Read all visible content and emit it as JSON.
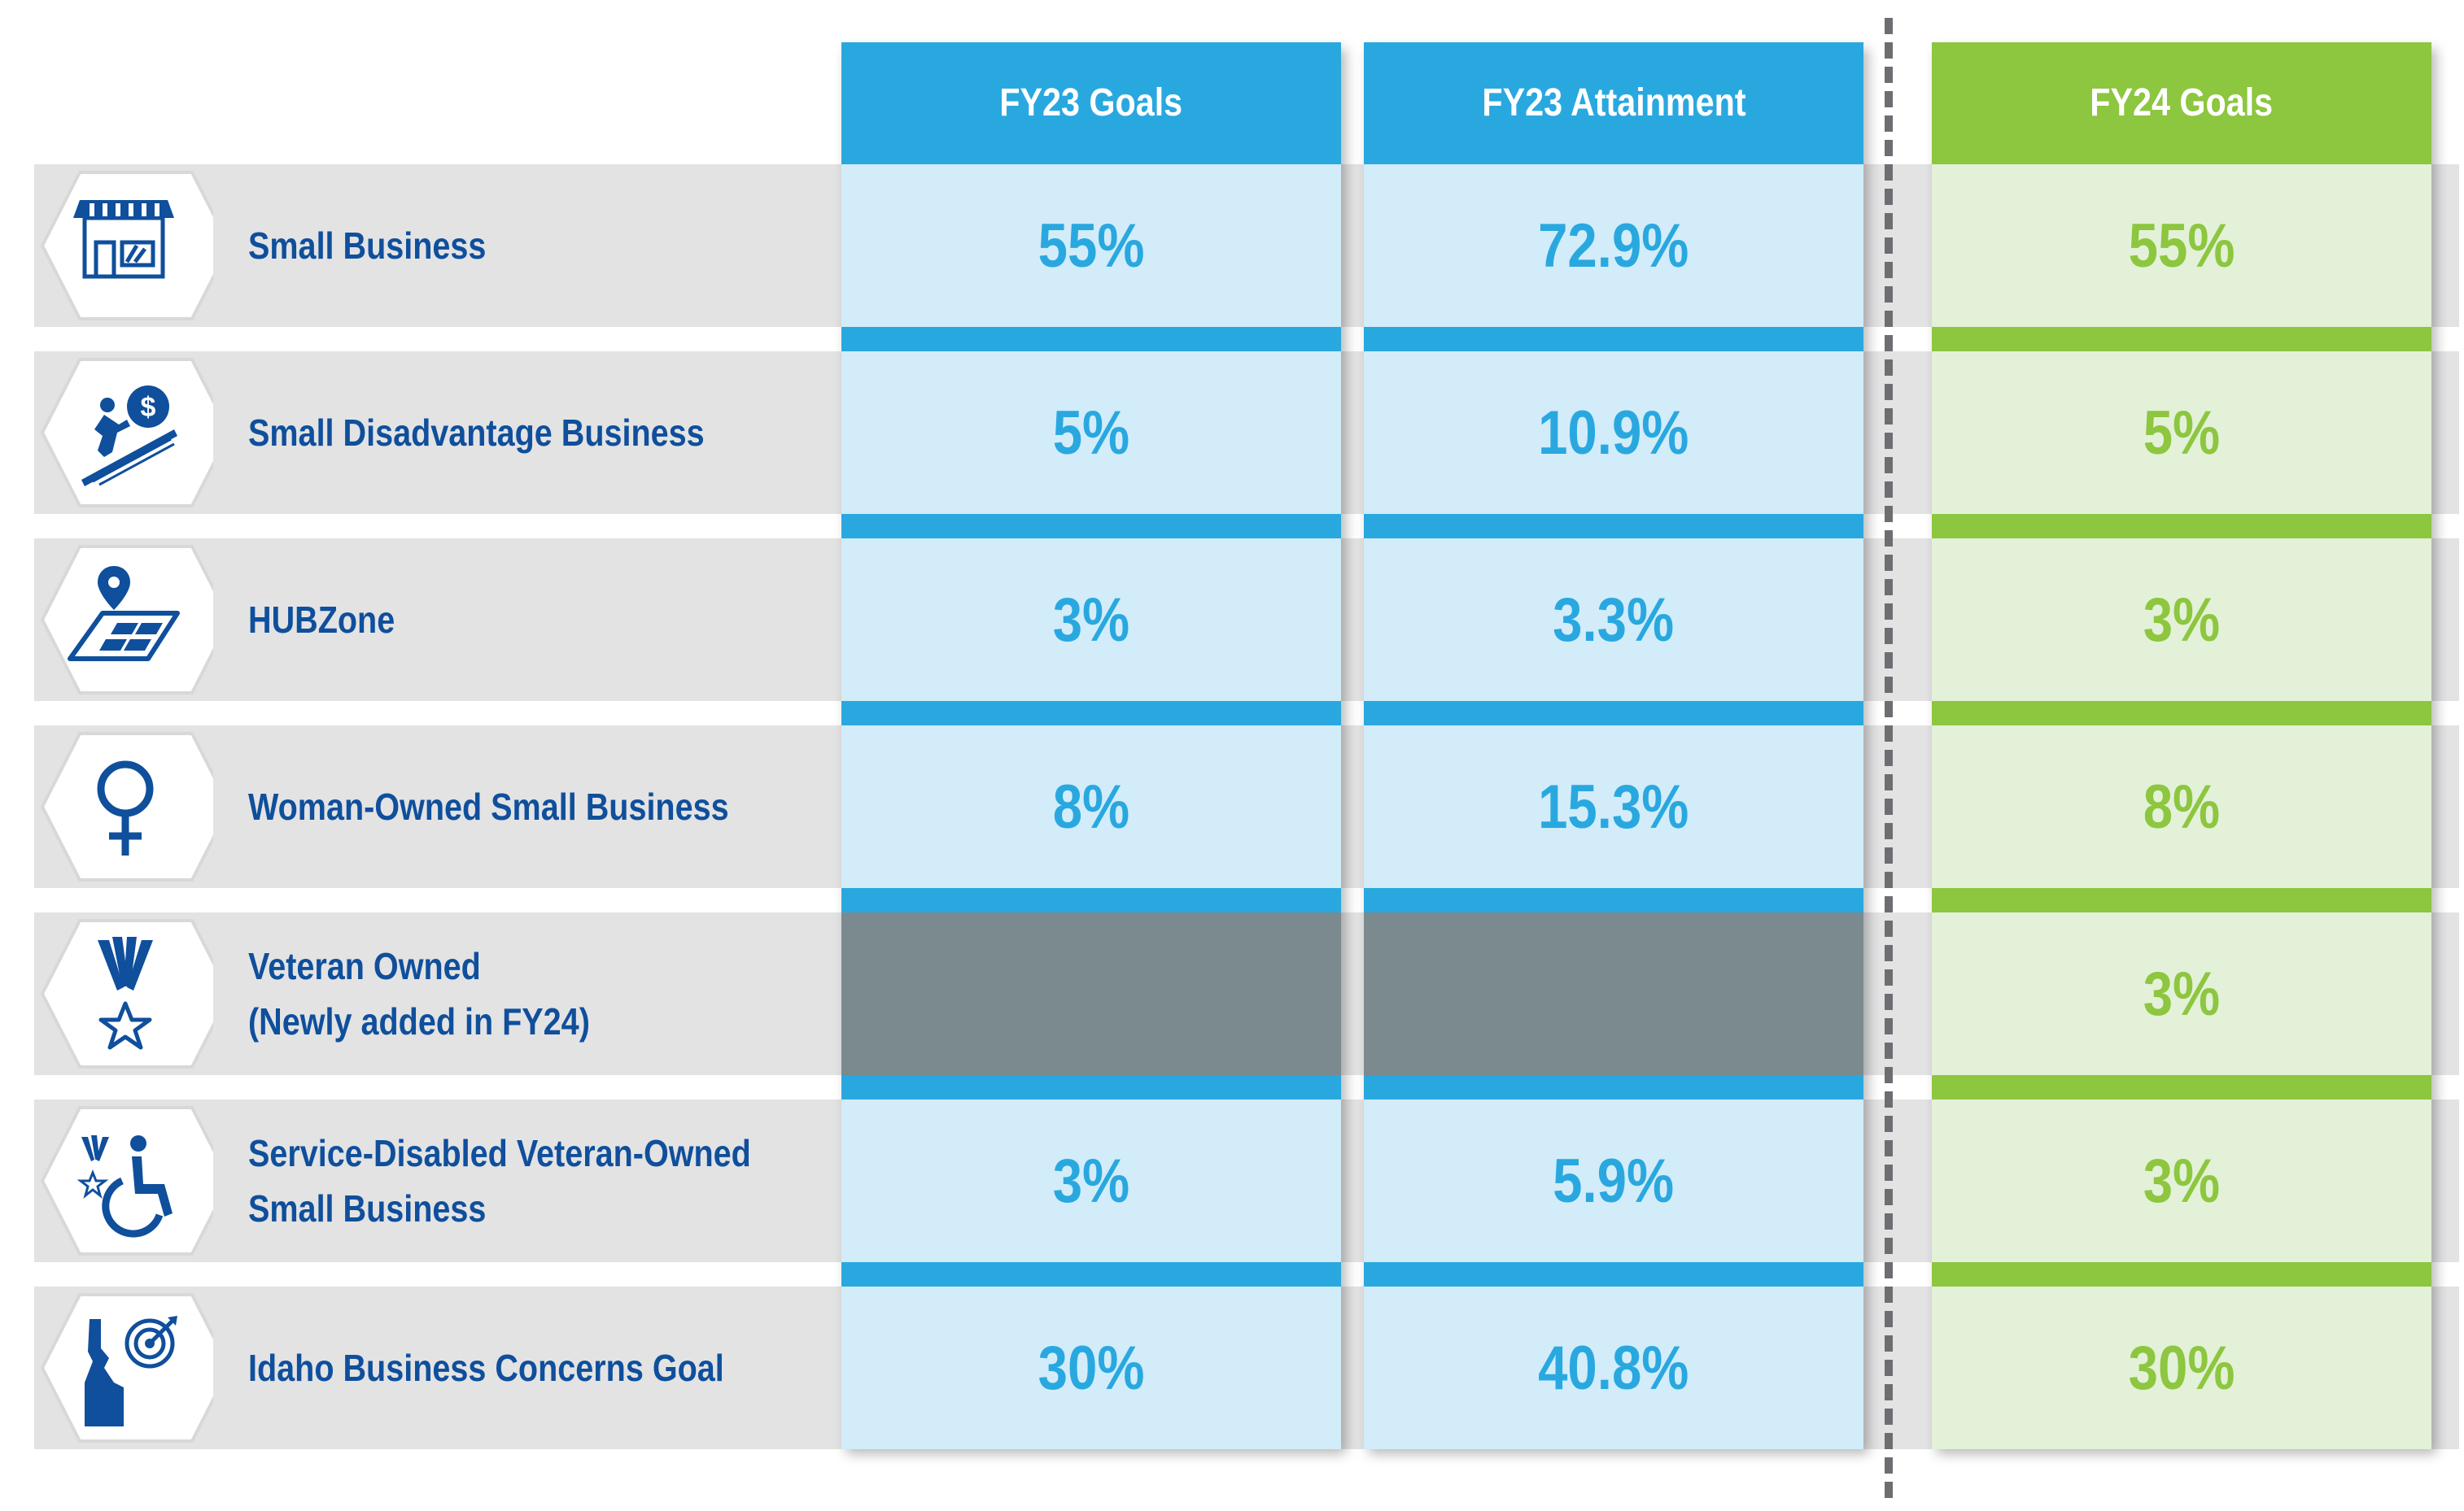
{
  "colors": {
    "fy23_header": "#29a8e0",
    "fy23_cell": "#d2ecf9",
    "fy23_text": "#29a8e0",
    "fy24_header": "#8dc63f",
    "fy24_cell": "#e3f1d8",
    "fy24_text": "#8dc63f",
    "label_text": "#0f4f9c",
    "row_band": "#e3e3e4",
    "blank_cell": "#7b8a8f",
    "icon_blue": "#0f4f9c"
  },
  "columns": [
    {
      "key": "fy23_goals",
      "label": "FY23 Goals"
    },
    {
      "key": "fy23_attainment",
      "label": "FY23 Attainment"
    },
    {
      "key": "fy24_goals",
      "label": "FY24 Goals"
    }
  ],
  "rows": [
    {
      "icon": "storefront-icon",
      "label_lines": [
        "Small Business"
      ],
      "fy23_goals": "55%",
      "fy23_attainment": "72.9%",
      "fy24_goals": "55%"
    },
    {
      "icon": "person-pushing-coin-uphill-icon",
      "label_lines": [
        "Small Disadvantage Business"
      ],
      "fy23_goals": "5%",
      "fy23_attainment": "10.9%",
      "fy24_goals": "5%"
    },
    {
      "icon": "map-pin-icon",
      "label_lines": [
        "HUBZone"
      ],
      "fy23_goals": "3%",
      "fy23_attainment": "3.3%",
      "fy24_goals": "3%"
    },
    {
      "icon": "female-symbol-icon",
      "label_lines": [
        "Woman-Owned Small Business"
      ],
      "fy23_goals": "8%",
      "fy23_attainment": "15.3%",
      "fy24_goals": "8%"
    },
    {
      "icon": "veteran-star-icon",
      "label_lines": [
        "Veteran Owned",
        "(Newly added in FY24)"
      ],
      "fy23_goals": "",
      "fy23_attainment": "",
      "fy24_goals": "3%"
    },
    {
      "icon": "veteran-wheelchair-icon",
      "label_lines": [
        "Service-Disabled Veteran-Owned",
        "Small Business"
      ],
      "fy23_goals": "3%",
      "fy23_attainment": "5.9%",
      "fy24_goals": "3%"
    },
    {
      "icon": "idaho-target-icon",
      "label_lines": [
        "Idaho Business Concerns Goal"
      ],
      "fy23_goals": "30%",
      "fy23_attainment": "40.8%",
      "fy24_goals": "30%"
    }
  ]
}
